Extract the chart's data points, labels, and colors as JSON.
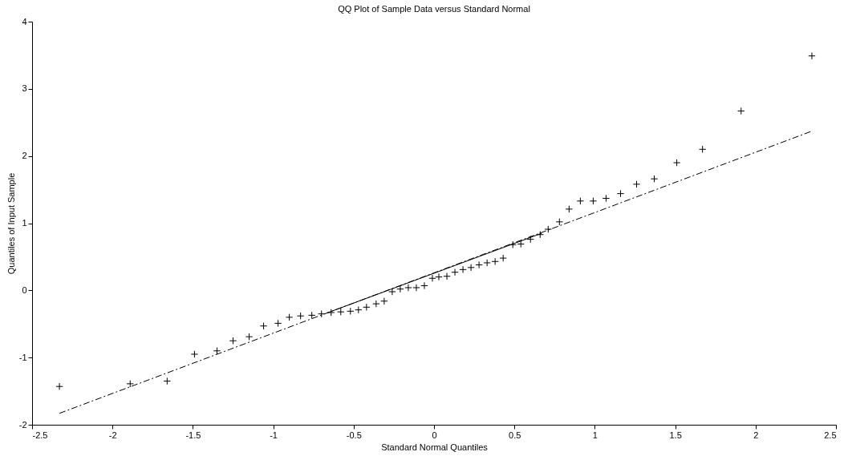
{
  "chart_data": {
    "type": "scatter",
    "title": "QQ Plot of Sample Data versus Standard Normal",
    "xlabel": "Standard Normal Quantiles",
    "ylabel": "Quantiles of Input Sample",
    "xlim": [
      -2.5,
      2.5
    ],
    "xticks": [
      -2.5,
      -2,
      -1.5,
      -1,
      -0.5,
      0,
      0.5,
      1,
      1.5,
      2,
      2.5
    ],
    "ylim": [
      -2,
      4
    ],
    "yticks": [
      -2,
      -1,
      0,
      1,
      2,
      3,
      4
    ],
    "grid": false,
    "series": [
      {
        "color": "#000000",
        "marker": "cross",
        "x": [
          -2.33,
          -1.89,
          -1.66,
          -1.49,
          -1.35,
          -1.25,
          -1.15,
          -1.06,
          -0.97,
          -0.9,
          -0.83,
          -0.76,
          -0.7,
          -0.64,
          -0.58,
          -0.52,
          -0.47,
          -0.42,
          -0.36,
          -0.31,
          -0.26,
          -0.21,
          -0.16,
          -0.11,
          -0.06,
          -0.01,
          0.03,
          0.08,
          0.13,
          0.18,
          0.23,
          0.28,
          0.33,
          0.38,
          0.43,
          0.49,
          0.54,
          0.6,
          0.66,
          0.71,
          0.78,
          0.84,
          0.91,
          0.99,
          1.07,
          1.16,
          1.26,
          1.37,
          1.51,
          1.67,
          1.91,
          2.35
        ],
        "values": [
          -1.43,
          -1.39,
          -1.35,
          -0.95,
          -0.9,
          -0.75,
          -0.69,
          -0.53,
          -0.49,
          -0.4,
          -0.38,
          -0.37,
          -0.35,
          -0.33,
          -0.32,
          -0.31,
          -0.29,
          -0.25,
          -0.2,
          -0.16,
          -0.02,
          0.02,
          0.04,
          0.04,
          0.07,
          0.18,
          0.2,
          0.21,
          0.27,
          0.31,
          0.34,
          0.38,
          0.41,
          0.43,
          0.48,
          0.68,
          0.69,
          0.76,
          0.83,
          0.91,
          1.02,
          1.21,
          1.33,
          1.33,
          1.37,
          1.44,
          1.58,
          1.66,
          1.9,
          2.1,
          2.67,
          3.49
        ]
      },
      {
        "type": "line",
        "color": "#000000",
        "line_style": "dashed",
        "x": [
          -2.33,
          2.35
        ],
        "values": [
          -1.83,
          2.37
        ]
      },
      {
        "type": "line",
        "color": "#000000",
        "line_style": "solid",
        "x": [
          -0.67,
          0.67
        ],
        "values": [
          -0.34,
          0.85
        ]
      }
    ]
  }
}
